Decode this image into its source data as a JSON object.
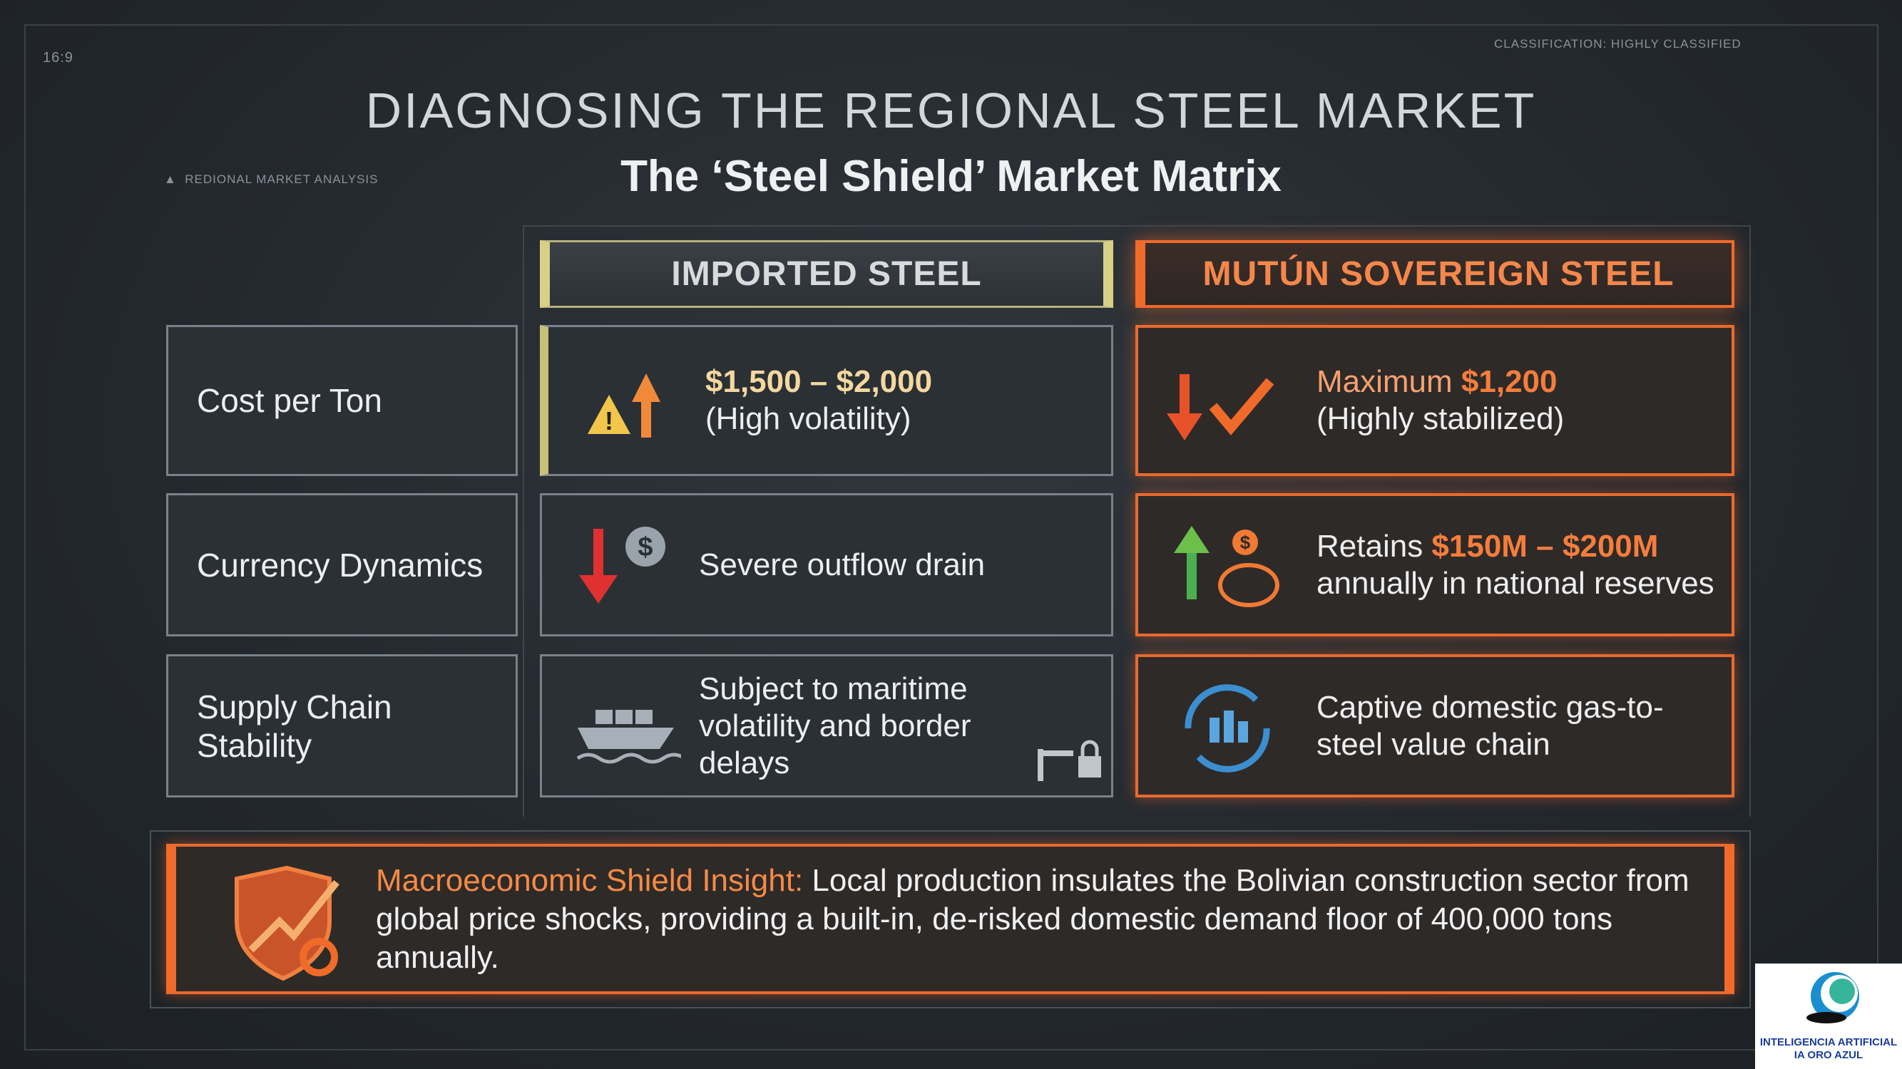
{
  "header": {
    "aspect": "16:9",
    "classification": "CLASSIFICATION: HIGHLY CLASSIFIED",
    "section": "REDIONAL MARKET ANALYSIS",
    "title": "DIAGNOSING THE REGIONAL STEEL MARKET",
    "subtitle": "The ‘Steel Shield’ Market Matrix"
  },
  "table": {
    "columns": [
      "IMPORTED STEEL",
      "MUTÚN SOVEREIGN STEEL"
    ],
    "rows": [
      {
        "label": "Cost per Ton",
        "imported": {
          "highlight": "$1,500 – $2,000",
          "text": "(High volatility)"
        },
        "mutun": {
          "lead": "Maximum",
          "highlight": "$1,200",
          "text": "(Highly stabilized)"
        }
      },
      {
        "label": "Currency Dynamics",
        "imported": {
          "text": "Severe outflow drain"
        },
        "mutun": {
          "lead": "Retains",
          "highlight": "$150M – $200M",
          "text": "annually in national reserves"
        }
      },
      {
        "label": "Supply Chain Stability",
        "imported": {
          "text": "Subject to maritime volatility and border delays"
        },
        "mutun": {
          "text": "Captive domestic gas-to-steel value chain"
        }
      }
    ]
  },
  "insight": {
    "label": "Macroeconomic Shield Insight:",
    "text": "Local production insulates the Bolivian construction sector from global price shocks, providing a built-in, de-risked domestic demand floor of 400,000 tons annually."
  },
  "logo": {
    "line1": "INTELIGENCIA ARTIFICIAL",
    "line2": "IA ORO AZUL"
  }
}
